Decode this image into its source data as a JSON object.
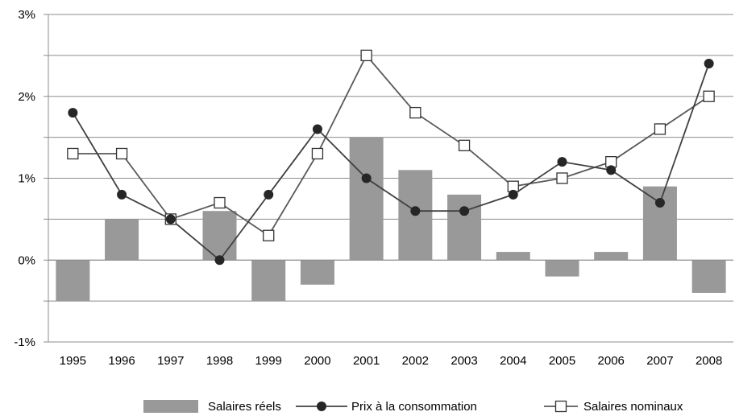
{
  "chart_data": {
    "type": "bar+line",
    "categories": [
      "1995",
      "1996",
      "1997",
      "1998",
      "1999",
      "2000",
      "2001",
      "2002",
      "2003",
      "2004",
      "2005",
      "2006",
      "2007",
      "2008"
    ],
    "series": [
      {
        "name": "Salaires réels",
        "type": "bar",
        "color": "#999999",
        "values": [
          -0.5,
          0.5,
          0.0,
          0.6,
          -0.5,
          -0.3,
          1.5,
          1.1,
          0.8,
          0.1,
          -0.2,
          0.1,
          0.9,
          -0.4
        ]
      },
      {
        "name": "Prix à la consommation",
        "type": "line",
        "marker": "filled-circle",
        "color": "#404040",
        "values": [
          1.8,
          0.8,
          0.5,
          0.0,
          0.8,
          1.6,
          1.0,
          0.6,
          0.6,
          0.8,
          1.2,
          1.1,
          0.7,
          2.4
        ]
      },
      {
        "name": "Salaires nominaux",
        "type": "line",
        "marker": "open-square",
        "color": "#595959",
        "values": [
          1.3,
          1.3,
          0.5,
          0.7,
          0.3,
          1.3,
          2.5,
          1.8,
          1.4,
          0.9,
          1.0,
          1.2,
          1.6,
          2.0
        ]
      }
    ],
    "y_ticks": [
      "-1%",
      "0%",
      "1%",
      "2%",
      "3%"
    ],
    "y_tick_values": [
      -1,
      0,
      1,
      2,
      3
    ],
    "ylim": [
      -1,
      3
    ],
    "grid": true,
    "grid_step": 0.5,
    "legend": "bottom"
  }
}
